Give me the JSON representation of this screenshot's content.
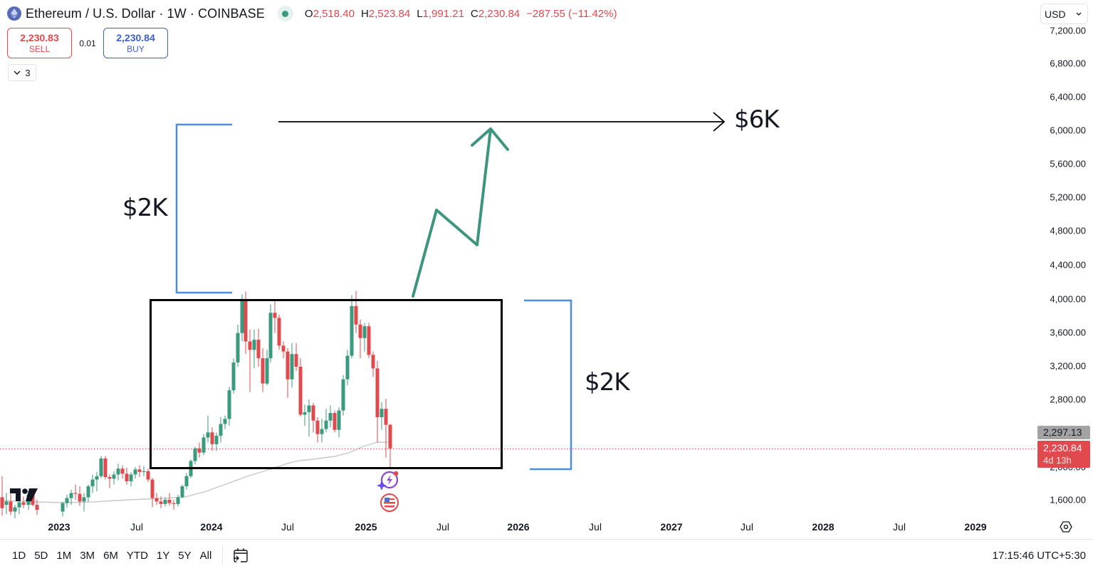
{
  "header": {
    "symbol_title": "Ethereum / U.S. Dollar · 1W · COINBASE",
    "coin_icon": "ethereum-icon",
    "market_status_icon": "market-open-dot-icon",
    "ohlc": {
      "o_label": "O",
      "o_value": "2,518.40",
      "h_label": "H",
      "h_value": "2,523.84",
      "l_label": "L",
      "l_value": "1,991.21",
      "c_label": "C",
      "c_value": "2,230.84",
      "change": "−287.55 (−11.42%)"
    }
  },
  "trade": {
    "sell_price": "2,230.83",
    "sell_label": "SELL",
    "spread": "0.01",
    "buy_price": "2,230.84",
    "buy_label": "BUY"
  },
  "indicators_toggle": {
    "count": "3"
  },
  "currency": {
    "selected": "USD"
  },
  "price_axis": {
    "ticks": [
      "7,200.00",
      "6,800.00",
      "6,400.00",
      "6,000.00",
      "5,600.00",
      "5,200.00",
      "4,800.00",
      "4,400.00",
      "4,000.00",
      "3,600.00",
      "3,200.00",
      "2,800.00",
      "2,000.00",
      "1,600.00"
    ],
    "ma_tag": "2,297.13",
    "last_price_tag": "2,230.84",
    "countdown": "4d 13h"
  },
  "time_axis": {
    "ticks": [
      {
        "label": "2023",
        "major": true
      },
      {
        "label": "Jul",
        "major": false
      },
      {
        "label": "2024",
        "major": true
      },
      {
        "label": "Jul",
        "major": false
      },
      {
        "label": "2025",
        "major": true
      },
      {
        "label": "Jul",
        "major": false
      },
      {
        "label": "2026",
        "major": true
      },
      {
        "label": "Jul",
        "major": false
      },
      {
        "label": "2027",
        "major": true
      },
      {
        "label": "Jul",
        "major": false
      },
      {
        "label": "2028",
        "major": true
      },
      {
        "label": "Jul",
        "major": false
      },
      {
        "label": "2029",
        "major": true
      }
    ]
  },
  "bottom_bar": {
    "ranges": [
      "1D",
      "5D",
      "1M",
      "3M",
      "6M",
      "YTD",
      "1Y",
      "5Y",
      "All"
    ],
    "clock": "17:15:46 UTC+5:30"
  },
  "annotations": {
    "target_label": "$6K",
    "upper_range_label": "$2K",
    "lower_range_label": "$2K"
  },
  "colors": {
    "up": "#3a9a7e",
    "down": "#e0494e",
    "range_box": "#000000",
    "bracket": "#4a8ee0",
    "projection": "#3d9580",
    "ma_line": "#c8c8c8",
    "last_price_line": "#e0494e"
  },
  "chart_data": {
    "type": "candlestick",
    "title": "Ethereum / U.S. Dollar · 1W · COINBASE",
    "xlabel": "",
    "ylabel": "USD",
    "ylim": [
      1400,
      7300
    ],
    "x_range": [
      "late 2022",
      "2029"
    ],
    "grid": false,
    "last_close": 2230.84,
    "moving_average_last": 2297.13,
    "ohlc_current_week": {
      "open": 2518.4,
      "high": 2523.84,
      "low": 1991.21,
      "close": 2230.84,
      "change": -287.55,
      "change_pct": -11.42
    },
    "approx_weekly_closes": [
      {
        "period": "2023-Q1",
        "low": 1550,
        "high": 1950
      },
      {
        "period": "2023-Q2",
        "low": 1700,
        "high": 2130
      },
      {
        "period": "2023-Q3",
        "low": 1550,
        "high": 1900
      },
      {
        "period": "2023-Q4",
        "low": 1600,
        "high": 2400
      },
      {
        "period": "2024-Q1",
        "low": 2150,
        "high": 4090
      },
      {
        "period": "2024-Q2",
        "low": 2850,
        "high": 3980
      },
      {
        "period": "2024-Q3",
        "low": 2150,
        "high": 3560
      },
      {
        "period": "2024-Q4",
        "low": 2350,
        "high": 4100
      },
      {
        "period": "2025-Q1",
        "low": 1990,
        "high": 3750
      }
    ],
    "drawings": [
      {
        "type": "rectangle",
        "name": "consolidation-range",
        "top": 4000,
        "bottom": 2000,
        "x_from": "2023-10",
        "x_to": "2025-10"
      },
      {
        "type": "bracket",
        "name": "lower-measure",
        "top": 4000,
        "bottom": 2000,
        "label": "$2K"
      },
      {
        "type": "bracket",
        "name": "upper-measure",
        "top": 6000,
        "bottom": 4000,
        "label": "$2K"
      },
      {
        "type": "horizontal-arrow",
        "name": "target-line",
        "price": 6000,
        "label": "$6K"
      },
      {
        "type": "zigzag-arrow",
        "name": "projection",
        "points_price": [
          4000,
          5150,
          4650,
          6000
        ]
      }
    ]
  }
}
